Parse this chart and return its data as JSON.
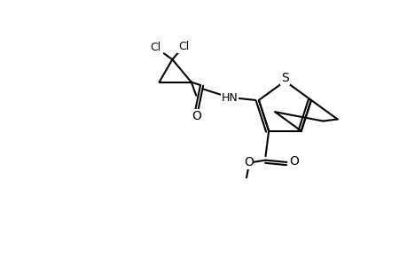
{
  "background_color": "#ffffff",
  "line_color": "#000000",
  "line_width": 1.5,
  "font_size": 9,
  "fig_width": 4.6,
  "fig_height": 3.0,
  "dpi": 100,
  "xlim": [
    0,
    10
  ],
  "ylim": [
    0,
    6.5
  ]
}
